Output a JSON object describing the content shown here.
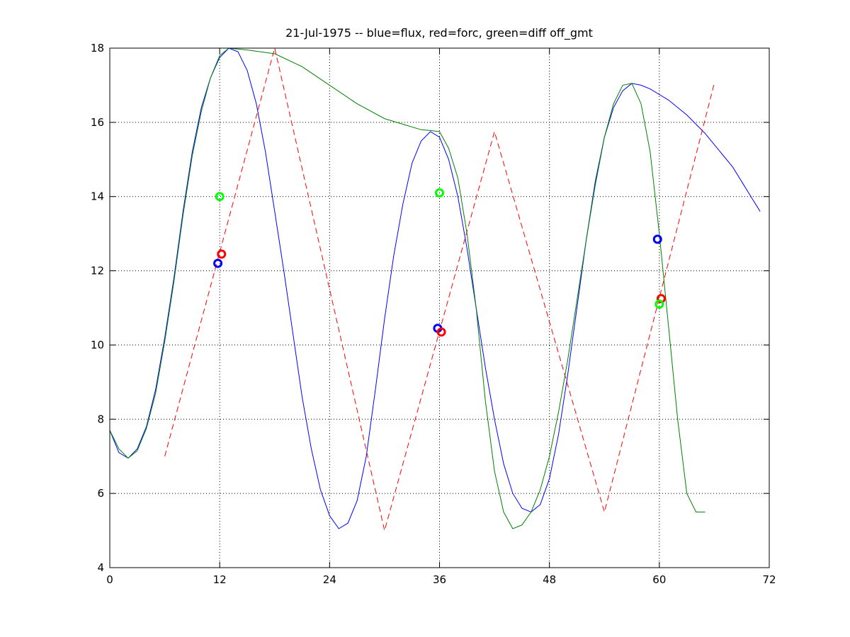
{
  "chart_data": {
    "type": "line",
    "title": "21-Jul-1975 -- blue=flux, red=forc, green=diff off_gmt",
    "xlabel": "",
    "ylabel": "",
    "xlim": [
      0,
      72
    ],
    "ylim": [
      4,
      18
    ],
    "xticks": [
      0,
      12,
      24,
      36,
      48,
      60,
      72
    ],
    "yticks": [
      4,
      6,
      8,
      10,
      12,
      14,
      16,
      18
    ],
    "grid": true,
    "series": [
      {
        "color": "#0000ff",
        "style": "solid",
        "points": [
          [
            0,
            7.7
          ],
          [
            1,
            7.1
          ],
          [
            2,
            6.95
          ],
          [
            3,
            7.2
          ],
          [
            4,
            7.8
          ],
          [
            5,
            8.8
          ],
          [
            6,
            10.2
          ],
          [
            7,
            11.8
          ],
          [
            8,
            13.6
          ],
          [
            9,
            15.2
          ],
          [
            10,
            16.4
          ],
          [
            11,
            17.2
          ],
          [
            12,
            17.75
          ],
          [
            13,
            18.0
          ],
          [
            14,
            17.9
          ],
          [
            15,
            17.4
          ],
          [
            16,
            16.5
          ],
          [
            17,
            15.2
          ],
          [
            18,
            13.6
          ],
          [
            19,
            12.0
          ],
          [
            20,
            10.3
          ],
          [
            21,
            8.6
          ],
          [
            22,
            7.2
          ],
          [
            23,
            6.1
          ],
          [
            24,
            5.4
          ],
          [
            25,
            5.05
          ],
          [
            26,
            5.2
          ],
          [
            27,
            5.8
          ],
          [
            28,
            7.0
          ],
          [
            29,
            8.8
          ],
          [
            30,
            10.7
          ],
          [
            31,
            12.4
          ],
          [
            32,
            13.8
          ],
          [
            33,
            14.9
          ],
          [
            34,
            15.5
          ],
          [
            35,
            15.75
          ],
          [
            36,
            15.6
          ],
          [
            37,
            15.0
          ],
          [
            38,
            14.0
          ],
          [
            39,
            12.6
          ],
          [
            40,
            11.0
          ],
          [
            41,
            9.4
          ],
          [
            42,
            8.0
          ],
          [
            43,
            6.8
          ],
          [
            44,
            6.0
          ],
          [
            45,
            5.6
          ],
          [
            46,
            5.5
          ],
          [
            47,
            5.7
          ],
          [
            48,
            6.4
          ],
          [
            49,
            7.6
          ],
          [
            50,
            9.2
          ],
          [
            51,
            11.0
          ],
          [
            52,
            12.8
          ],
          [
            53,
            14.4
          ],
          [
            54,
            15.6
          ],
          [
            55,
            16.4
          ],
          [
            56,
            16.85
          ],
          [
            57,
            17.05
          ],
          [
            58,
            17.0
          ],
          [
            59,
            16.9
          ],
          [
            60,
            16.75
          ],
          [
            61,
            16.6
          ],
          [
            62,
            16.4
          ],
          [
            63,
            16.2
          ],
          [
            64,
            15.95
          ],
          [
            65,
            15.7
          ],
          [
            66,
            15.4
          ],
          [
            67,
            15.1
          ],
          [
            68,
            14.8
          ],
          [
            69,
            14.4
          ],
          [
            70,
            14.0
          ],
          [
            71,
            13.6
          ]
        ]
      },
      {
        "color": "#ff0000",
        "style": "dashed",
        "points": [
          [
            6,
            7.0
          ],
          [
            18,
            18.0
          ],
          [
            30,
            5.0
          ],
          [
            42,
            15.75
          ],
          [
            54,
            5.5
          ],
          [
            66,
            17.05
          ]
        ]
      },
      {
        "color": "#008000",
        "style": "solid",
        "points": [
          [
            0,
            7.7
          ],
          [
            1,
            7.2
          ],
          [
            2,
            6.95
          ],
          [
            3,
            7.15
          ],
          [
            4,
            7.75
          ],
          [
            5,
            8.7
          ],
          [
            6,
            10.1
          ],
          [
            7,
            11.7
          ],
          [
            8,
            13.5
          ],
          [
            9,
            15.1
          ],
          [
            10,
            16.3
          ],
          [
            11,
            17.2
          ],
          [
            12,
            17.8
          ],
          [
            13,
            18.0
          ],
          [
            15,
            17.95
          ],
          [
            18,
            17.85
          ],
          [
            21,
            17.5
          ],
          [
            24,
            17.0
          ],
          [
            27,
            16.5
          ],
          [
            30,
            16.1
          ],
          [
            32,
            15.95
          ],
          [
            34,
            15.8
          ],
          [
            35,
            15.78
          ],
          [
            36,
            15.75
          ],
          [
            37,
            15.3
          ],
          [
            38,
            14.5
          ],
          [
            39,
            13.0
          ],
          [
            40,
            11.0
          ],
          [
            41,
            8.5
          ],
          [
            42,
            6.6
          ],
          [
            43,
            5.5
          ],
          [
            44,
            5.05
          ],
          [
            45,
            5.15
          ],
          [
            46,
            5.5
          ],
          [
            47,
            6.1
          ],
          [
            48,
            7.0
          ],
          [
            49,
            8.2
          ],
          [
            50,
            9.6
          ],
          [
            51,
            11.2
          ],
          [
            52,
            12.8
          ],
          [
            53,
            14.3
          ],
          [
            54,
            15.6
          ],
          [
            55,
            16.5
          ],
          [
            56,
            17.0
          ],
          [
            57,
            17.05
          ],
          [
            58,
            16.5
          ],
          [
            59,
            15.2
          ],
          [
            60,
            13.0
          ],
          [
            61,
            10.5
          ],
          [
            62,
            8.0
          ],
          [
            63,
            6.0
          ],
          [
            64,
            5.5
          ],
          [
            65,
            5.5
          ]
        ]
      }
    ],
    "markers": [
      {
        "color": "#0000ff",
        "x": 11.8,
        "y": 12.2
      },
      {
        "color": "#ff0000",
        "x": 12.2,
        "y": 12.45
      },
      {
        "color": "#00ff00",
        "x": 12.0,
        "y": 14.0
      },
      {
        "color": "#0000ff",
        "x": 35.8,
        "y": 10.45
      },
      {
        "color": "#ff0000",
        "x": 36.2,
        "y": 10.35
      },
      {
        "color": "#00ff00",
        "x": 36.0,
        "y": 14.1
      },
      {
        "color": "#0000ff",
        "x": 59.8,
        "y": 12.85
      },
      {
        "color": "#ff0000",
        "x": 60.2,
        "y": 11.25
      },
      {
        "color": "#00ff00",
        "x": 60.0,
        "y": 11.1
      }
    ]
  }
}
